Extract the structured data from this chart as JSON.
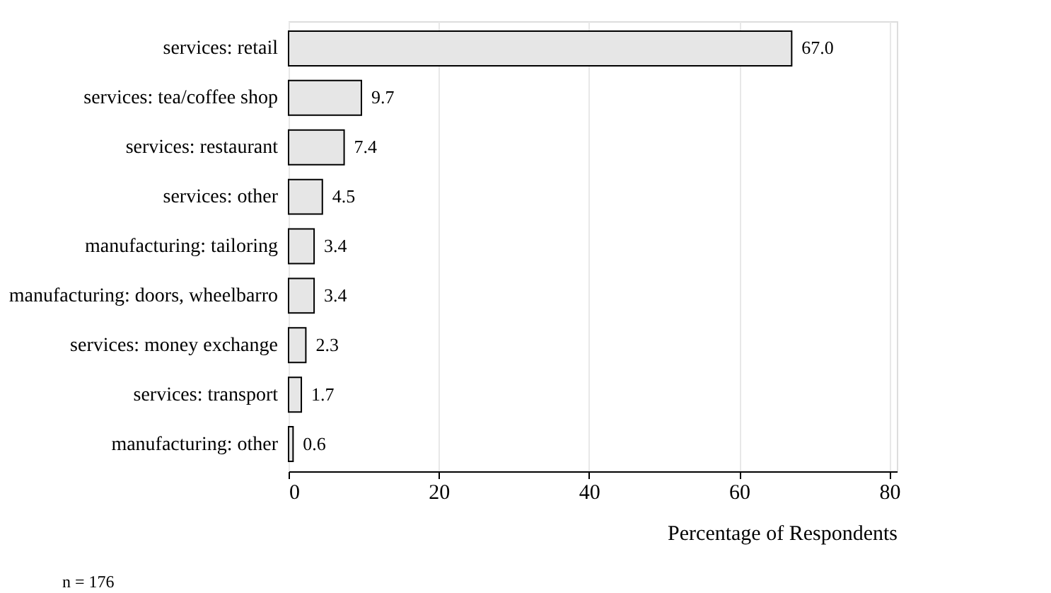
{
  "chart_data": {
    "type": "bar",
    "orientation": "horizontal",
    "categories": [
      "services: retail",
      "services: tea/coffee shop",
      "services: restaurant",
      "services: other",
      "manufacturing: tailoring",
      "manufacturing: doors, wheelbarro",
      "services: money exchange",
      "services: transport",
      "manufacturing: other"
    ],
    "values": [
      67.0,
      9.7,
      7.4,
      4.5,
      3.4,
      3.4,
      2.3,
      1.7,
      0.6
    ],
    "color": "#e6e6e6",
    "xlim": [
      0,
      81
    ],
    "xticks": [
      0,
      20,
      40,
      60,
      80
    ],
    "grid": "x",
    "xlabel": "Percentage of Respondents",
    "value_labels": [
      "67.0",
      "9.7",
      "7.4",
      "4.5",
      "3.4",
      "3.4",
      "2.3",
      "1.7",
      "0.6"
    ],
    "annotations": [
      "n = 176"
    ]
  }
}
